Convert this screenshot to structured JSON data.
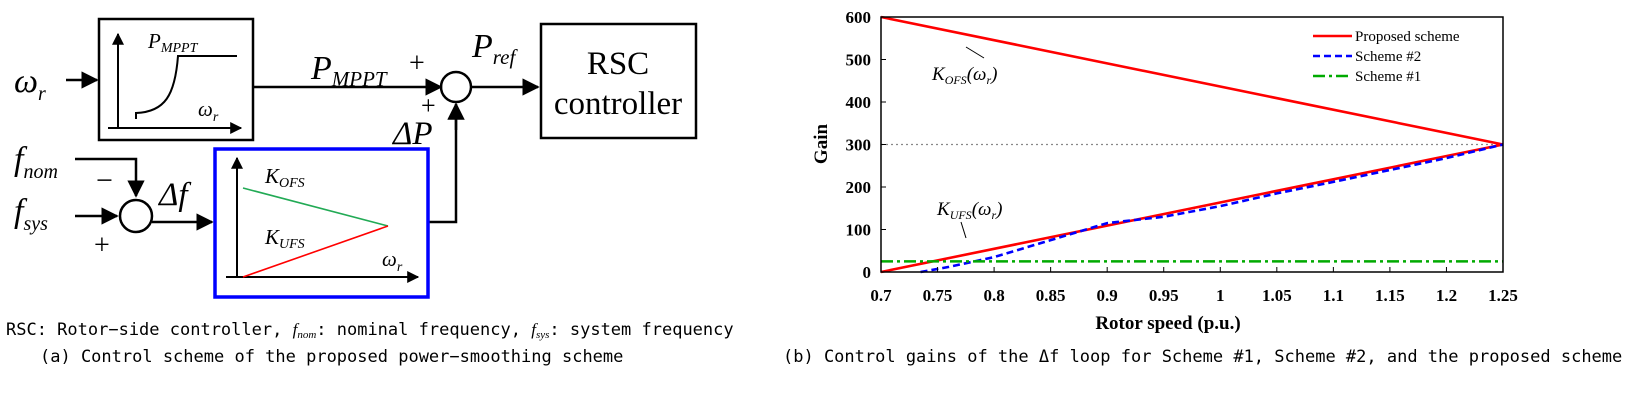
{
  "left_diagram": {
    "input_omega": {
      "main": "ω",
      "sub": "r"
    },
    "mppt_box": {
      "curve_label": {
        "main": "P",
        "sub": "MPPT"
      },
      "axis_label": {
        "main": "ω",
        "sub": "r"
      }
    },
    "mppt_output": {
      "main": "P",
      "sub": "MPPT",
      "sign": "+"
    },
    "pref": {
      "main": "P",
      "sub": "ref"
    },
    "rsc_box": {
      "line1": "RSC",
      "line2": "controller"
    },
    "delta_p": {
      "main": "ΔP",
      "sign": "+"
    },
    "fnom": {
      "main": "f",
      "sub": "nom",
      "sign": "−"
    },
    "fsys": {
      "main": "f",
      "sub": "sys",
      "sign": "+"
    },
    "delta_f": "Δf",
    "gain_box": {
      "k_ofs": {
        "main": "K",
        "sub": "OFS"
      },
      "k_ufs": {
        "main": "K",
        "sub": "UFS"
      },
      "axis_label": {
        "main": "ω",
        "sub": "r"
      }
    },
    "legend_note": {
      "prefix": "RSC: Rotor−side controller, ",
      "fnom_main": "f",
      "fnom_sub": "nom",
      "mid": ": nominal frequency, ",
      "fsys_main": "f",
      "fsys_sub": "sys",
      "suffix": ": system frequency"
    },
    "caption": "(a) Control scheme of the proposed power−smoothing scheme"
  },
  "chart_data": {
    "type": "line",
    "xlabel": "Rotor speed (p.u.)",
    "ylabel": "Gain",
    "xlim": [
      0.7,
      1.25
    ],
    "ylim": [
      0,
      600
    ],
    "xticks": [
      "0.7",
      "0.75",
      "0.8",
      "0.85",
      "0.9",
      "0.95",
      "1",
      "1.05",
      "1.1",
      "1.15",
      "1.2",
      "1.25"
    ],
    "yticks": [
      "0",
      "100",
      "200",
      "300",
      "400",
      "500",
      "600"
    ],
    "reference_line": {
      "y": 300,
      "style": "dotted",
      "color": "#888888"
    },
    "series": [
      {
        "name": "Proposed scheme",
        "color": "#ff0000",
        "style": "solid",
        "segments": [
          {
            "x": [
              0.7,
              1.25
            ],
            "y": [
              600,
              300
            ]
          },
          {
            "x": [
              0.7,
              1.25
            ],
            "y": [
              0,
              300
            ]
          }
        ]
      },
      {
        "name": "Scheme #2",
        "color": "#0000ff",
        "style": "dashed",
        "segments": [
          {
            "x": [
              0.735,
              0.76,
              0.8,
              0.85,
              0.9,
              0.95,
              1.0,
              1.05,
              1.1,
              1.15,
              1.2,
              1.25
            ],
            "y": [
              0,
              12,
              35,
              75,
              115,
              130,
              155,
              185,
              212,
              240,
              268,
              300
            ]
          }
        ]
      },
      {
        "name": "Scheme #1",
        "color": "#00aa00",
        "style": "dashdot",
        "segments": [
          {
            "x": [
              0.7,
              1.25
            ],
            "y": [
              25,
              25
            ]
          }
        ]
      }
    ],
    "legend_position": "top-right",
    "annotations": [
      {
        "main": "K",
        "sub": "OFS",
        "arg": "(ω",
        "argsub": "r",
        "close": ")"
      },
      {
        "main": "K",
        "sub": "UFS",
        "arg": "(ω",
        "argsub": "r",
        "close": ")"
      }
    ],
    "caption": "(b) Control gains of the Δf loop for Scheme #1, Scheme #2, and the proposed scheme"
  }
}
